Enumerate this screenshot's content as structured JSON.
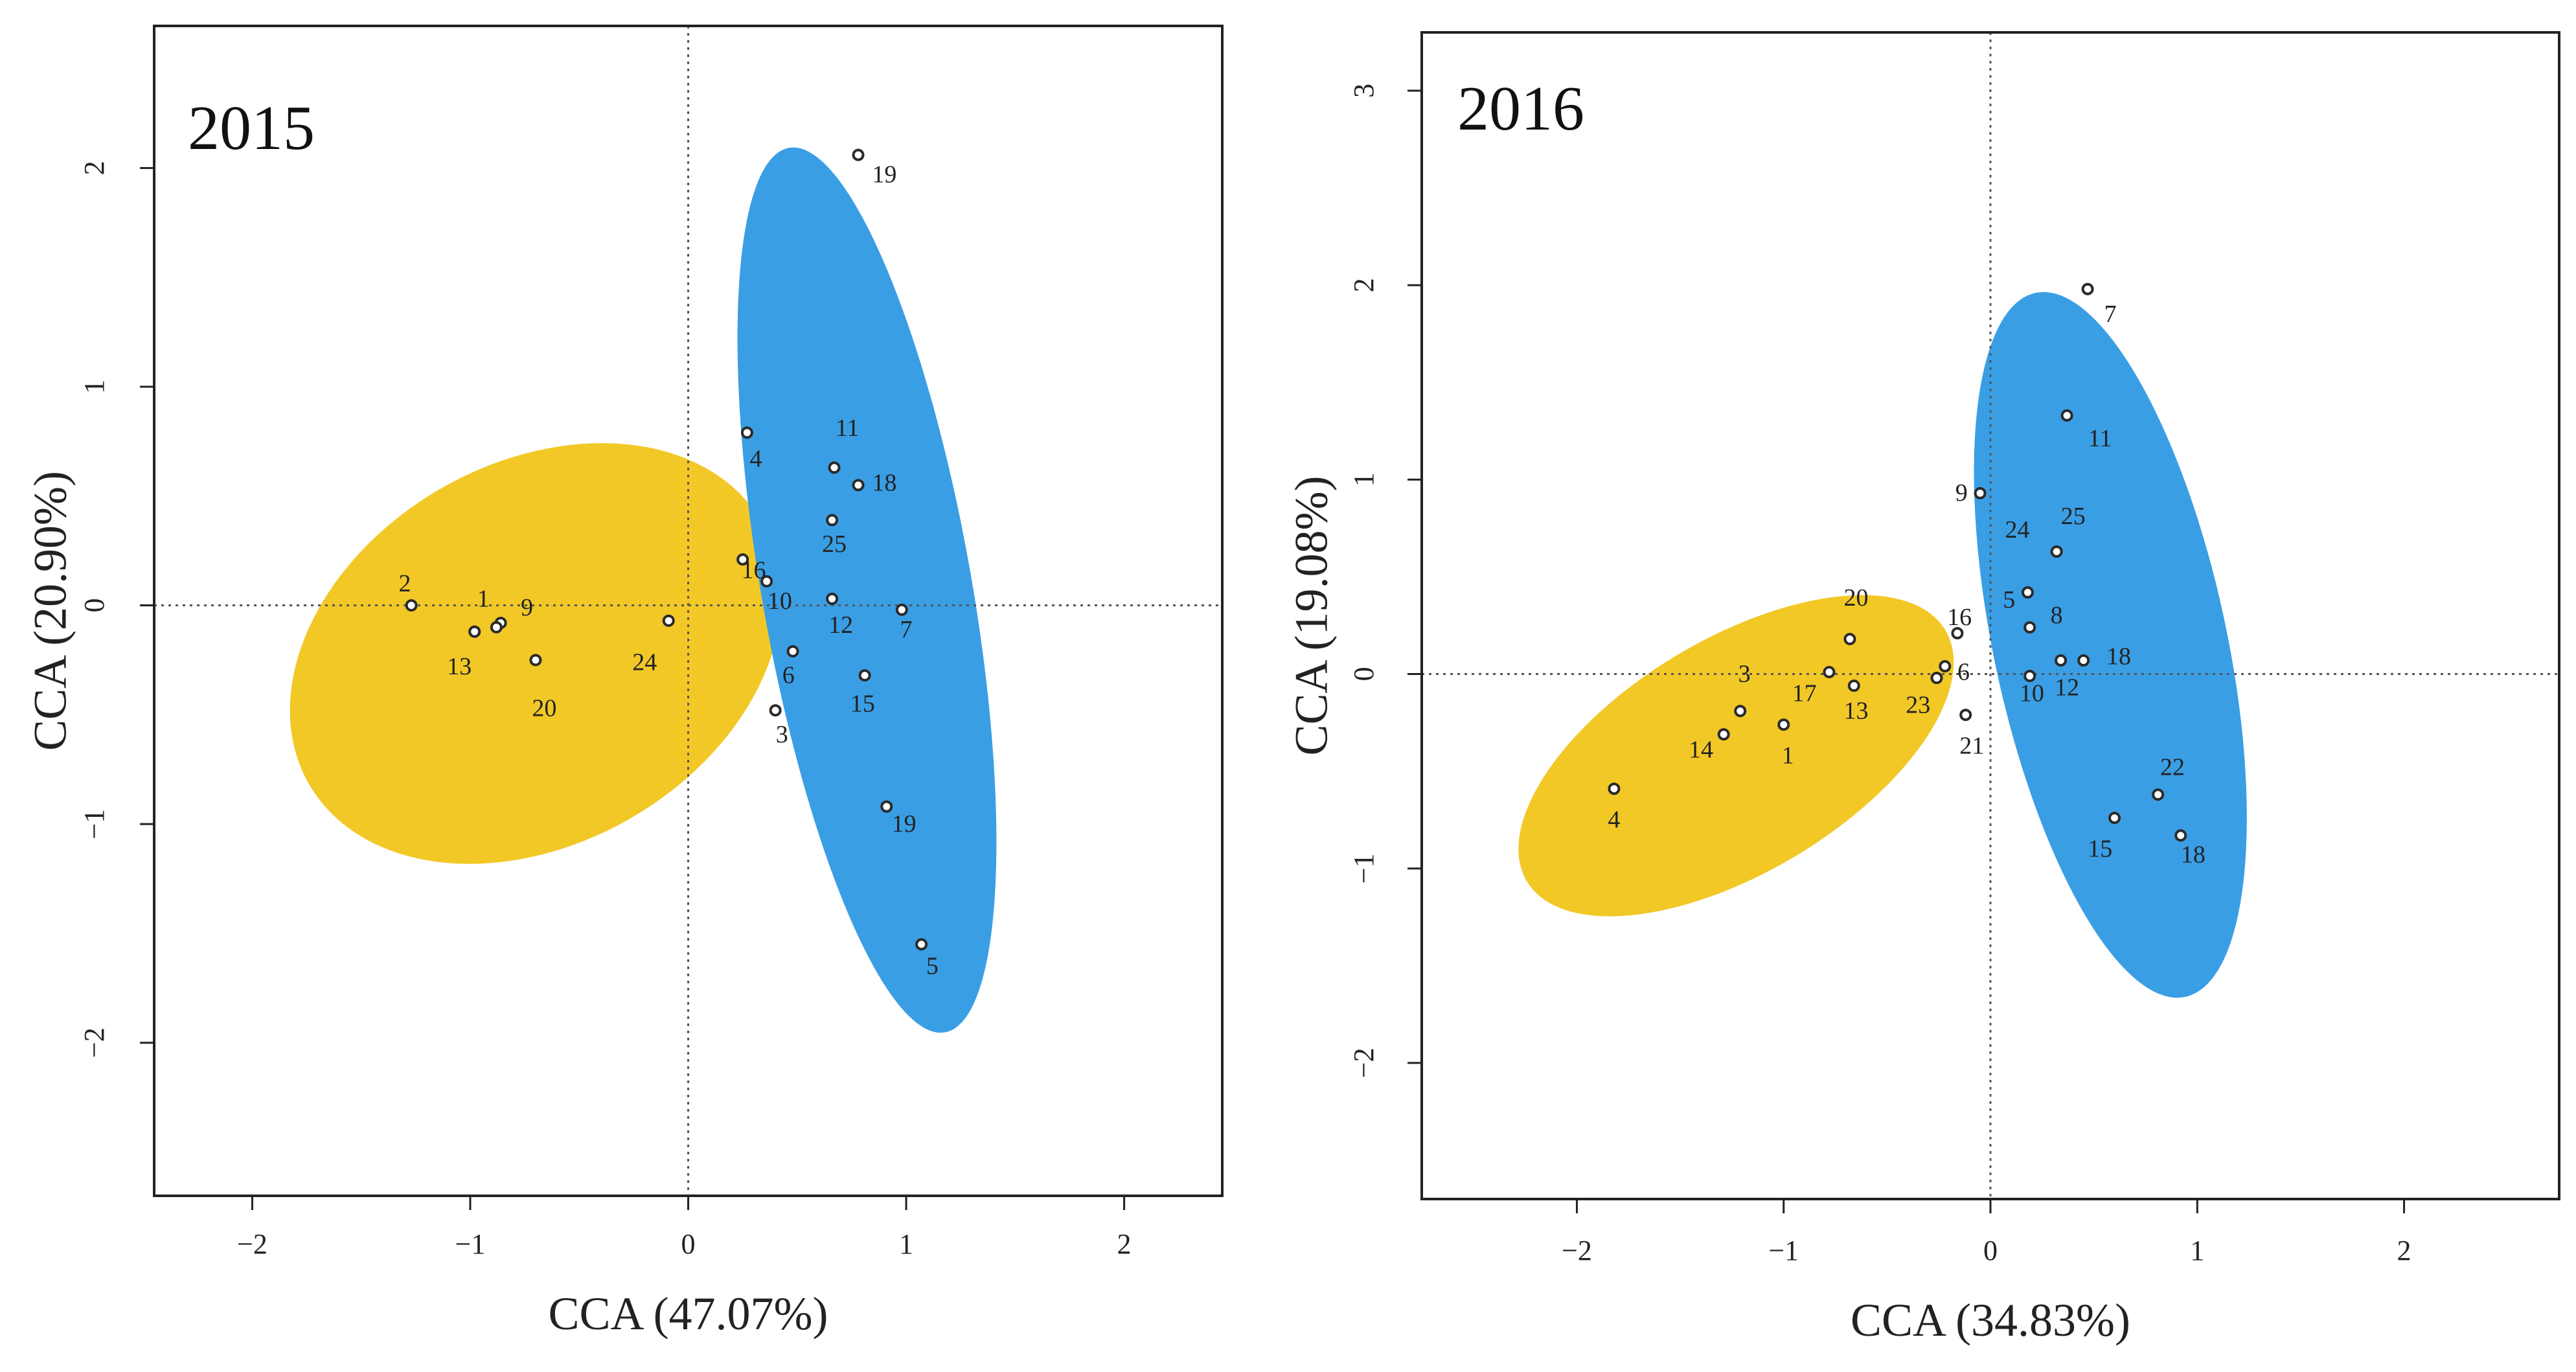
{
  "colors": {
    "group_a": "#f2c827",
    "group_b": "#3a9ee4",
    "points": "#2a2a2a",
    "frame": "#222222",
    "reference_lines": "#555555"
  },
  "chart_data": [
    {
      "type": "scatter",
      "title": "2015",
      "xlabel": "CCA (47.07%)",
      "ylabel": "CCA (20.90%)",
      "xlim": [
        -2.45,
        2.45
      ],
      "ylim": [
        -2.7,
        2.65
      ],
      "xticks": [
        -2,
        -1,
        0,
        1,
        2
      ],
      "yticks": [
        -2,
        -1,
        0,
        1,
        2
      ],
      "xtick_labels": [
        "−2",
        "−1",
        "0",
        "1",
        "2"
      ],
      "ytick_labels": [
        "−2",
        "−1",
        "0",
        "1",
        "2"
      ],
      "reference_lines": {
        "x": 0,
        "y": 0
      },
      "grid": false,
      "ellipses": [
        {
          "group": "group_a",
          "cx": -0.7,
          "cy": -0.22,
          "rx": 1.2,
          "ry": 0.87,
          "angle": 30
        },
        {
          "group": "group_b",
          "cx": 0.82,
          "cy": 0.07,
          "rx": 2.06,
          "ry": 0.48,
          "angle": -80
        }
      ],
      "points": [
        {
          "label": "2",
          "x": -1.27,
          "y": 0.0,
          "lx": -1.3,
          "ly": 0.09
        },
        {
          "label": "1",
          "x": -0.98,
          "y": -0.12,
          "lx": -0.94,
          "ly": 0.02
        },
        {
          "label": "9",
          "x": -0.86,
          "y": -0.08,
          "lx": -0.74,
          "ly": -0.02
        },
        {
          "label": "",
          "x": -0.88,
          "y": -0.1,
          "lx": -0.88,
          "ly": -0.1
        },
        {
          "label": "13",
          "x": -0.98,
          "y": -0.12,
          "lx": -1.05,
          "ly": -0.29
        },
        {
          "label": "20",
          "x": -0.7,
          "y": -0.25,
          "lx": -0.66,
          "ly": -0.48
        },
        {
          "label": "24",
          "x": -0.09,
          "y": -0.07,
          "lx": -0.2,
          "ly": -0.27
        },
        {
          "label": "4",
          "x": 0.27,
          "y": 0.79,
          "lx": 0.31,
          "ly": 0.66
        },
        {
          "label": "11",
          "x": 0.67,
          "y": 0.63,
          "lx": 0.73,
          "ly": 0.8
        },
        {
          "label": "18",
          "x": 0.78,
          "y": 0.55,
          "lx": 0.9,
          "ly": 0.55
        },
        {
          "label": "25",
          "x": 0.66,
          "y": 0.39,
          "lx": 0.67,
          "ly": 0.27
        },
        {
          "label": "16",
          "x": 0.25,
          "y": 0.21,
          "lx": 0.3,
          "ly": 0.15
        },
        {
          "label": "10",
          "x": 0.36,
          "y": 0.11,
          "lx": 0.42,
          "ly": 0.01
        },
        {
          "label": "12",
          "x": 0.66,
          "y": 0.03,
          "lx": 0.7,
          "ly": -0.1
        },
        {
          "label": "7",
          "x": 0.98,
          "y": -0.02,
          "lx": 1.0,
          "ly": -0.12
        },
        {
          "label": "6",
          "x": 0.48,
          "y": -0.21,
          "lx": 0.46,
          "ly": -0.33
        },
        {
          "label": "15",
          "x": 0.81,
          "y": -0.32,
          "lx": 0.8,
          "ly": -0.46
        },
        {
          "label": "3",
          "x": 0.4,
          "y": -0.48,
          "lx": 0.43,
          "ly": -0.6
        },
        {
          "label": "19",
          "x": 0.78,
          "y": 2.06,
          "lx": 0.9,
          "ly": 1.96
        },
        {
          "label": "19",
          "x": 0.91,
          "y": -0.92,
          "lx": 0.99,
          "ly": -1.01
        },
        {
          "label": "5",
          "x": 1.07,
          "y": -1.55,
          "lx": 1.12,
          "ly": -1.66
        }
      ]
    },
    {
      "type": "scatter",
      "title": "2016",
      "xlabel": "CCA (34.83%)",
      "ylabel": "CCA (19.08%)",
      "xlim": [
        -2.75,
        2.75
      ],
      "ylim": [
        -2.7,
        3.3
      ],
      "xticks": [
        -2,
        -1,
        0,
        1,
        2
      ],
      "yticks": [
        -2,
        -1,
        0,
        1,
        2,
        3
      ],
      "xtick_labels": [
        "−2",
        "−1",
        "0",
        "1",
        "2"
      ],
      "ytick_labels": [
        "−2",
        "−1",
        "0",
        "1",
        "2",
        "3"
      ],
      "reference_lines": {
        "x": 0,
        "y": 0
      },
      "grid": false,
      "ellipses": [
        {
          "group": "group_a",
          "cx": -1.23,
          "cy": -0.42,
          "rx": 1.18,
          "ry": 0.6,
          "angle": 31
        },
        {
          "group": "group_b",
          "cx": 0.58,
          "cy": 0.15,
          "rx": 1.74,
          "ry": 0.6,
          "angle": -78
        }
      ],
      "points": [
        {
          "label": "7",
          "x": 0.47,
          "y": 1.98,
          "lx": 0.58,
          "ly": 1.84
        },
        {
          "label": "11",
          "x": 0.37,
          "y": 1.33,
          "lx": 0.53,
          "ly": 1.2
        },
        {
          "label": "9",
          "x": -0.05,
          "y": 0.93,
          "lx": -0.14,
          "ly": 0.92
        },
        {
          "label": "25",
          "x": 0.32,
          "y": 0.63,
          "lx": 0.4,
          "ly": 0.8
        },
        {
          "label": "24",
          "x": 0.32,
          "y": 0.63,
          "lx": 0.13,
          "ly": 0.73
        },
        {
          "label": "5",
          "x": 0.18,
          "y": 0.42,
          "lx": 0.09,
          "ly": 0.37
        },
        {
          "label": "8",
          "x": 0.19,
          "y": 0.24,
          "lx": 0.32,
          "ly": 0.29
        },
        {
          "label": "16",
          "x": -0.16,
          "y": 0.21,
          "lx": -0.15,
          "ly": 0.28
        },
        {
          "label": "20",
          "x": -0.68,
          "y": 0.18,
          "lx": -0.65,
          "ly": 0.38
        },
        {
          "label": "18",
          "x": 0.45,
          "y": 0.07,
          "lx": 0.62,
          "ly": 0.08
        },
        {
          "label": "12",
          "x": 0.34,
          "y": 0.07,
          "lx": 0.37,
          "ly": -0.08
        },
        {
          "label": "10",
          "x": 0.19,
          "y": -0.01,
          "lx": 0.2,
          "ly": -0.11
        },
        {
          "label": "6",
          "x": -0.22,
          "y": 0.04,
          "lx": -0.13,
          "ly": 0.0
        },
        {
          "label": "",
          "x": -0.26,
          "y": -0.02,
          "lx": -0.26,
          "ly": -0.02
        },
        {
          "label": "23",
          "x": -0.26,
          "y": -0.02,
          "lx": -0.35,
          "ly": -0.17
        },
        {
          "label": "21",
          "x": -0.12,
          "y": -0.21,
          "lx": -0.09,
          "ly": -0.38
        },
        {
          "label": "17",
          "x": -0.78,
          "y": 0.01,
          "lx": -0.9,
          "ly": -0.11
        },
        {
          "label": "13",
          "x": -0.66,
          "y": -0.06,
          "lx": -0.65,
          "ly": -0.2
        },
        {
          "label": "3",
          "x": -1.21,
          "y": -0.19,
          "lx": -1.19,
          "ly": -0.01
        },
        {
          "label": "14",
          "x": -1.29,
          "y": -0.31,
          "lx": -1.4,
          "ly": -0.4
        },
        {
          "label": "1",
          "x": -1.0,
          "y": -0.26,
          "lx": -0.98,
          "ly": -0.43
        },
        {
          "label": "4",
          "x": -1.82,
          "y": -0.59,
          "lx": -1.82,
          "ly": -0.76
        },
        {
          "label": "22",
          "x": 0.81,
          "y": -0.62,
          "lx": 0.88,
          "ly": -0.49
        },
        {
          "label": "15",
          "x": 0.6,
          "y": -0.74,
          "lx": 0.53,
          "ly": -0.91
        },
        {
          "label": "18",
          "x": 0.92,
          "y": -0.83,
          "lx": 0.98,
          "ly": -0.94
        }
      ]
    }
  ]
}
